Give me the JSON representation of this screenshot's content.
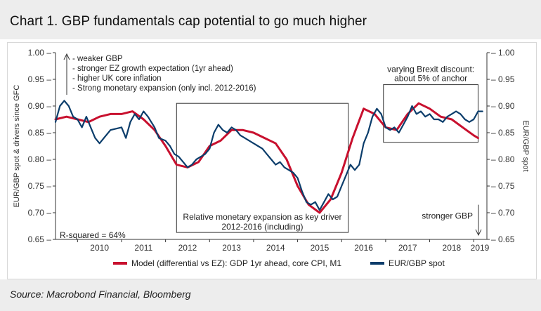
{
  "header": {
    "title": "Chart 1. GBP fundamentals cap potential to go much higher"
  },
  "footer": {
    "source": "Source: Macrobond Financial, Bloomberg"
  },
  "colors": {
    "model": "#c8102e",
    "spot": "#0b3d6b",
    "background": "#ededed"
  },
  "chart_data": {
    "type": "line",
    "x_ticks": [
      "2010",
      "2011",
      "2012",
      "2013",
      "2014",
      "2015",
      "2016",
      "2017",
      "2018",
      "2019"
    ],
    "y_ticks": [
      "1.00",
      "0.95",
      "0.90",
      "0.85",
      "0.80",
      "0.75",
      "0.70",
      "0.65"
    ],
    "ylim": [
      0.65,
      1.0
    ],
    "xlim": [
      2009.5,
      2019.3
    ],
    "ylabel_left": "EUR/GBP spot & drivers since GFC",
    "ylabel_right": "EUR/GBP spot",
    "grid": false,
    "legend_position": "bottom",
    "annotations": {
      "drivers": [
        "- weaker GBP",
        "- stronger EZ growth expectation (1yr ahead)",
        "- higher UK core inflation",
        "- Strong monetary expansion (only incl. 2012-2016)"
      ],
      "r_squared": "R-squared = 64%",
      "relative_box_line1": "Relative monetary expansion as key driver",
      "relative_box_line2": "2012-2016 (including)",
      "brexit_line1": "varying Brexit discount:",
      "brexit_line2": "about 5% of anchor",
      "stronger_gbp": "stronger GBP"
    },
    "series": [
      {
        "name": "Model (differential vs EZ): GDP 1yr ahead, core CPI, M1",
        "color": "#c8102e",
        "points": [
          [
            2009.5,
            0.875
          ],
          [
            2009.75,
            0.88
          ],
          [
            2010.0,
            0.875
          ],
          [
            2010.25,
            0.87
          ],
          [
            2010.5,
            0.88
          ],
          [
            2010.75,
            0.885
          ],
          [
            2011.0,
            0.885
          ],
          [
            2011.25,
            0.89
          ],
          [
            2011.5,
            0.875
          ],
          [
            2011.75,
            0.855
          ],
          [
            2012.0,
            0.825
          ],
          [
            2012.25,
            0.79
          ],
          [
            2012.5,
            0.785
          ],
          [
            2012.75,
            0.795
          ],
          [
            2013.0,
            0.825
          ],
          [
            2013.25,
            0.835
          ],
          [
            2013.5,
            0.855
          ],
          [
            2013.75,
            0.855
          ],
          [
            2014.0,
            0.85
          ],
          [
            2014.25,
            0.84
          ],
          [
            2014.5,
            0.83
          ],
          [
            2014.75,
            0.8
          ],
          [
            2015.0,
            0.75
          ],
          [
            2015.25,
            0.715
          ],
          [
            2015.5,
            0.7
          ],
          [
            2015.75,
            0.725
          ],
          [
            2016.0,
            0.775
          ],
          [
            2016.25,
            0.84
          ],
          [
            2016.5,
            0.895
          ],
          [
            2016.75,
            0.885
          ],
          [
            2017.0,
            0.86
          ],
          [
            2017.25,
            0.855
          ],
          [
            2017.5,
            0.885
          ],
          [
            2017.75,
            0.905
          ],
          [
            2018.0,
            0.895
          ],
          [
            2018.25,
            0.88
          ],
          [
            2018.5,
            0.875
          ],
          [
            2018.75,
            0.86
          ],
          [
            2019.0,
            0.845
          ],
          [
            2019.1,
            0.84
          ]
        ]
      },
      {
        "name": "EUR/GBP spot",
        "color": "#0b3d6b",
        "points": [
          [
            2009.5,
            0.87
          ],
          [
            2009.6,
            0.9
          ],
          [
            2009.7,
            0.91
          ],
          [
            2009.8,
            0.9
          ],
          [
            2009.9,
            0.88
          ],
          [
            2010.0,
            0.875
          ],
          [
            2010.1,
            0.86
          ],
          [
            2010.2,
            0.88
          ],
          [
            2010.3,
            0.86
          ],
          [
            2010.4,
            0.84
          ],
          [
            2010.5,
            0.83
          ],
          [
            2010.6,
            0.84
          ],
          [
            2010.75,
            0.855
          ],
          [
            2011.0,
            0.86
          ],
          [
            2011.1,
            0.84
          ],
          [
            2011.2,
            0.87
          ],
          [
            2011.3,
            0.885
          ],
          [
            2011.4,
            0.875
          ],
          [
            2011.5,
            0.89
          ],
          [
            2011.6,
            0.88
          ],
          [
            2011.75,
            0.86
          ],
          [
            2011.85,
            0.84
          ],
          [
            2012.0,
            0.835
          ],
          [
            2012.1,
            0.825
          ],
          [
            2012.2,
            0.81
          ],
          [
            2012.3,
            0.805
          ],
          [
            2012.4,
            0.795
          ],
          [
            2012.5,
            0.785
          ],
          [
            2012.6,
            0.79
          ],
          [
            2012.7,
            0.8
          ],
          [
            2012.8,
            0.805
          ],
          [
            2012.9,
            0.81
          ],
          [
            2013.0,
            0.82
          ],
          [
            2013.1,
            0.85
          ],
          [
            2013.2,
            0.865
          ],
          [
            2013.3,
            0.855
          ],
          [
            2013.4,
            0.85
          ],
          [
            2013.5,
            0.86
          ],
          [
            2013.6,
            0.855
          ],
          [
            2013.7,
            0.845
          ],
          [
            2013.8,
            0.84
          ],
          [
            2013.9,
            0.835
          ],
          [
            2014.0,
            0.83
          ],
          [
            2014.1,
            0.825
          ],
          [
            2014.2,
            0.82
          ],
          [
            2014.3,
            0.81
          ],
          [
            2014.4,
            0.8
          ],
          [
            2014.5,
            0.79
          ],
          [
            2014.6,
            0.795
          ],
          [
            2014.7,
            0.785
          ],
          [
            2014.8,
            0.78
          ],
          [
            2014.9,
            0.775
          ],
          [
            2015.0,
            0.765
          ],
          [
            2015.1,
            0.74
          ],
          [
            2015.2,
            0.72
          ],
          [
            2015.3,
            0.715
          ],
          [
            2015.4,
            0.72
          ],
          [
            2015.5,
            0.705
          ],
          [
            2015.6,
            0.72
          ],
          [
            2015.7,
            0.735
          ],
          [
            2015.8,
            0.725
          ],
          [
            2015.9,
            0.73
          ],
          [
            2016.0,
            0.75
          ],
          [
            2016.1,
            0.77
          ],
          [
            2016.2,
            0.79
          ],
          [
            2016.3,
            0.78
          ],
          [
            2016.4,
            0.79
          ],
          [
            2016.5,
            0.83
          ],
          [
            2016.6,
            0.85
          ],
          [
            2016.7,
            0.88
          ],
          [
            2016.8,
            0.895
          ],
          [
            2016.9,
            0.885
          ],
          [
            2017.0,
            0.86
          ],
          [
            2017.1,
            0.855
          ],
          [
            2017.2,
            0.86
          ],
          [
            2017.3,
            0.85
          ],
          [
            2017.4,
            0.865
          ],
          [
            2017.5,
            0.88
          ],
          [
            2017.6,
            0.9
          ],
          [
            2017.7,
            0.885
          ],
          [
            2017.8,
            0.89
          ],
          [
            2017.9,
            0.88
          ],
          [
            2018.0,
            0.885
          ],
          [
            2018.1,
            0.875
          ],
          [
            2018.2,
            0.875
          ],
          [
            2018.3,
            0.87
          ],
          [
            2018.4,
            0.88
          ],
          [
            2018.5,
            0.885
          ],
          [
            2018.6,
            0.89
          ],
          [
            2018.7,
            0.885
          ],
          [
            2018.8,
            0.875
          ],
          [
            2018.9,
            0.87
          ],
          [
            2019.0,
            0.875
          ],
          [
            2019.1,
            0.89
          ],
          [
            2019.2,
            0.89
          ]
        ]
      }
    ]
  }
}
